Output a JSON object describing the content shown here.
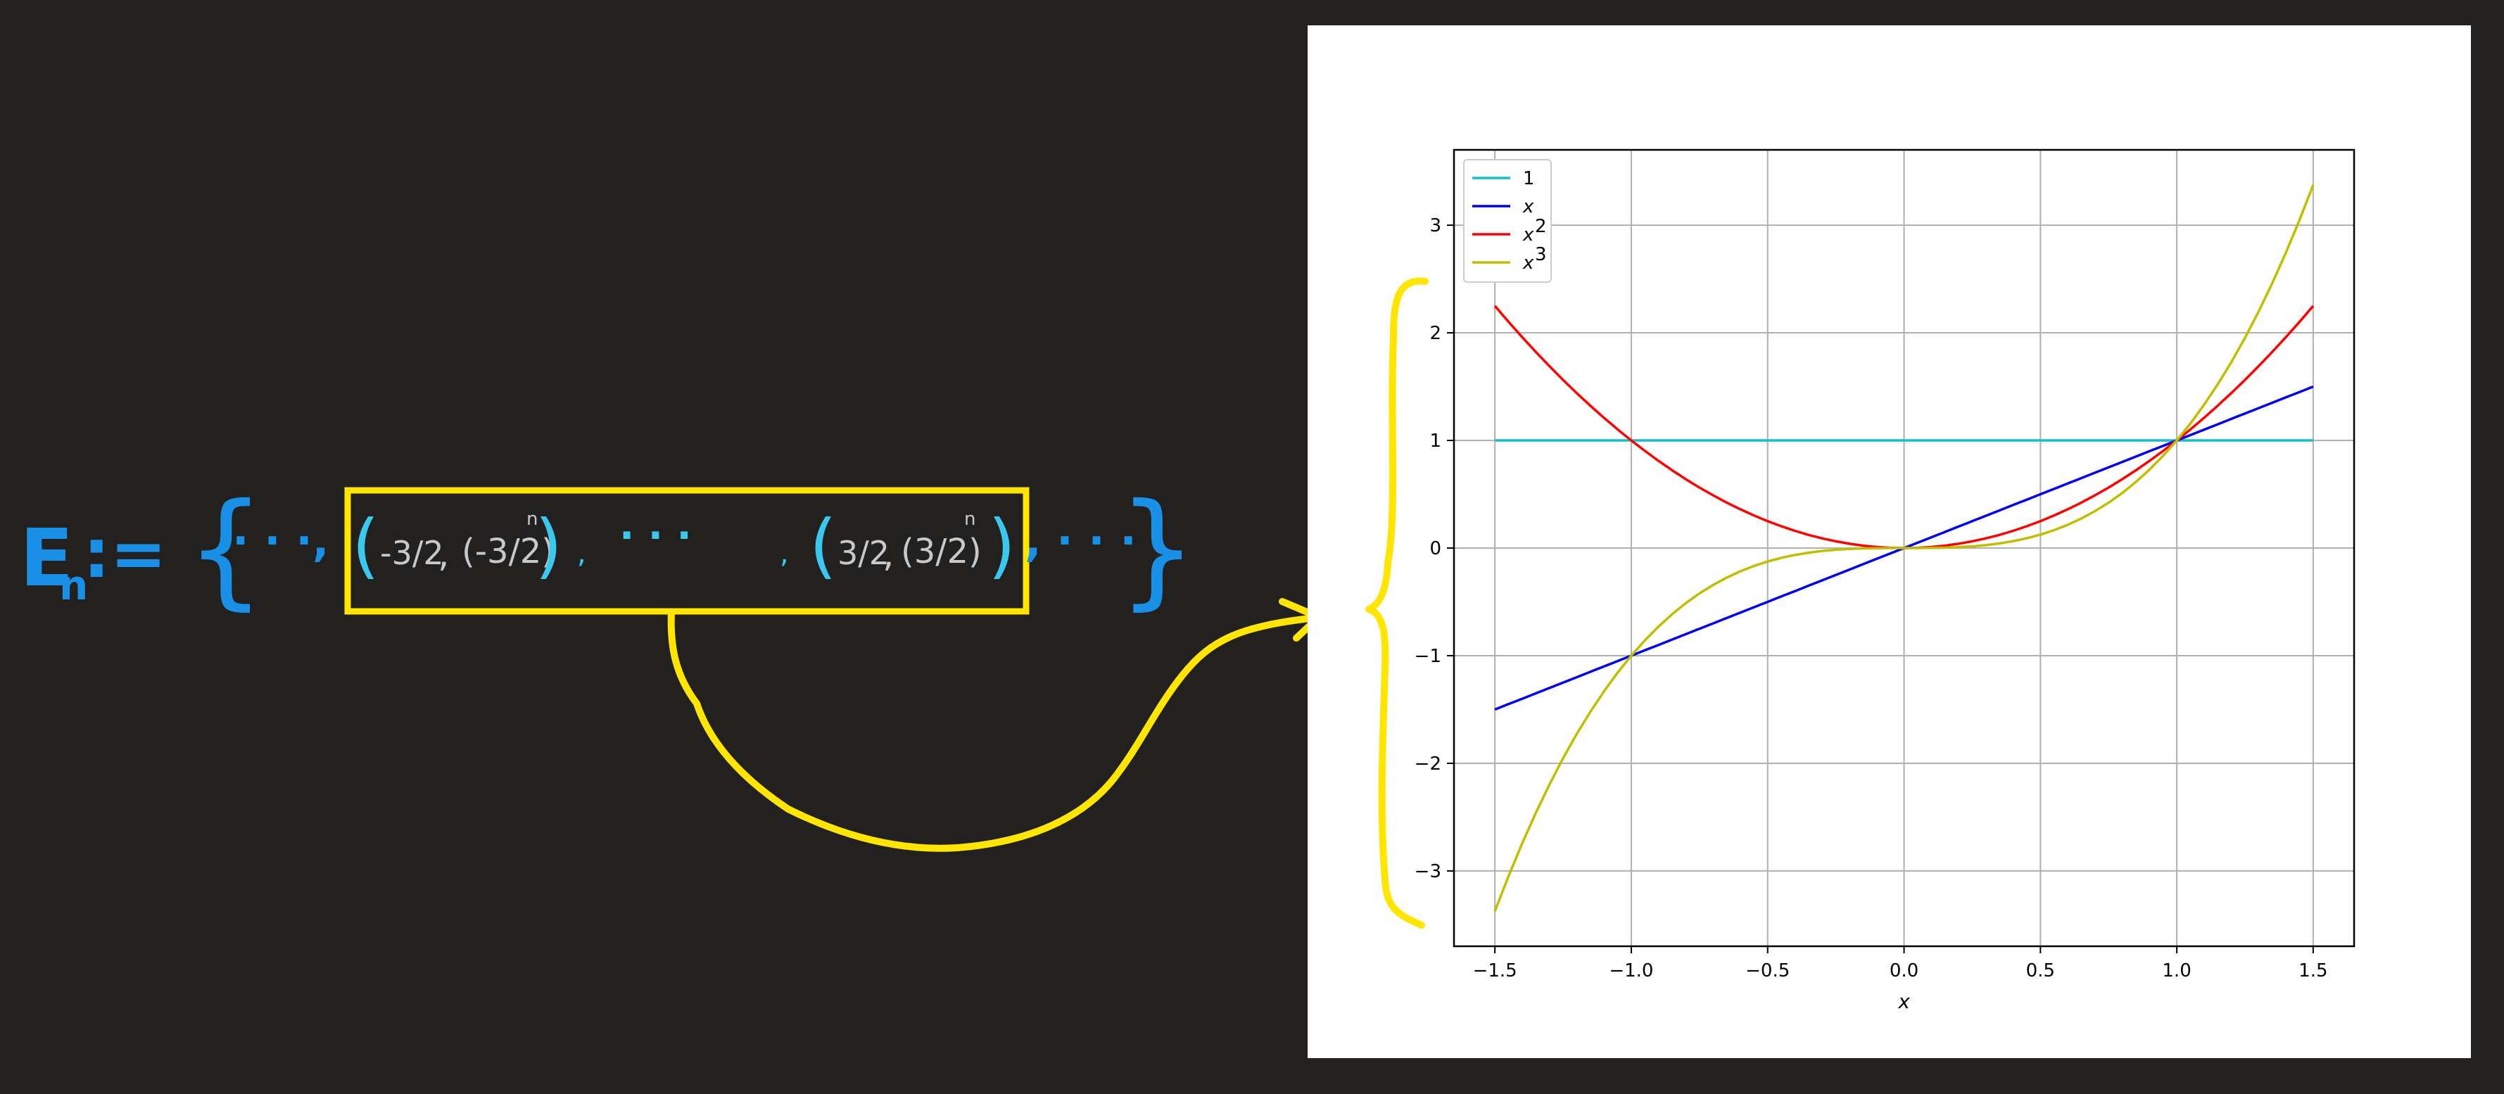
{
  "annotation": {
    "set_name": "E",
    "set_subscript": "n",
    "define_symbol": ":=",
    "left_brace": "{",
    "right_brace": "}",
    "leading_ellipsis": "· · ·,",
    "trailing_ellipsis": ", · · ·",
    "middle_ellipsis": "· · ·",
    "element_1_x": "-3/2",
    "element_1_y": "(-3/2)",
    "element_1_y_exponent": "n",
    "element_2_x": "3/2",
    "element_2_y": "(3/2)",
    "element_2_y_exponent": "n",
    "colors": {
      "set_ink": "#1a8fe6",
      "paren_ink": "#3cc8ee",
      "value_ink": "#c8c8c8",
      "highlight": "#ffe500",
      "background": "#222120"
    }
  },
  "chart_data": {
    "type": "line",
    "title": "",
    "xlabel": "x",
    "ylabel": "",
    "xlim": [
      -1.65,
      1.65
    ],
    "ylim": [
      -3.7,
      3.7
    ],
    "x_ticks": [
      -1.5,
      -1.0,
      -0.5,
      0.0,
      0.5,
      1.0,
      1.5
    ],
    "x_tick_labels": [
      "−1.5",
      "−1.0",
      "−0.5",
      "0.0",
      "0.5",
      "1.0",
      "1.5"
    ],
    "y_ticks": [
      -3,
      -2,
      -1,
      0,
      1,
      2,
      3
    ],
    "y_tick_labels": [
      "−3",
      "−2",
      "−1",
      "0",
      "1",
      "2",
      "3"
    ],
    "grid": true,
    "legend_position": "top-left",
    "x_range": [
      -1.5,
      1.5
    ],
    "series": [
      {
        "name": "1",
        "label_base": "1",
        "label_sup": "",
        "color": "#17becf",
        "exponent": 0
      },
      {
        "name": "x",
        "label_base": "x",
        "label_sup": "",
        "color": "#0000ee",
        "exponent": 1
      },
      {
        "name": "x^2",
        "label_base": "x",
        "label_sup": "2",
        "color": "#ff0000",
        "exponent": 2
      },
      {
        "name": "x^3",
        "label_base": "x",
        "label_sup": "3",
        "color": "#bfbf00",
        "exponent": 3
      }
    ]
  }
}
